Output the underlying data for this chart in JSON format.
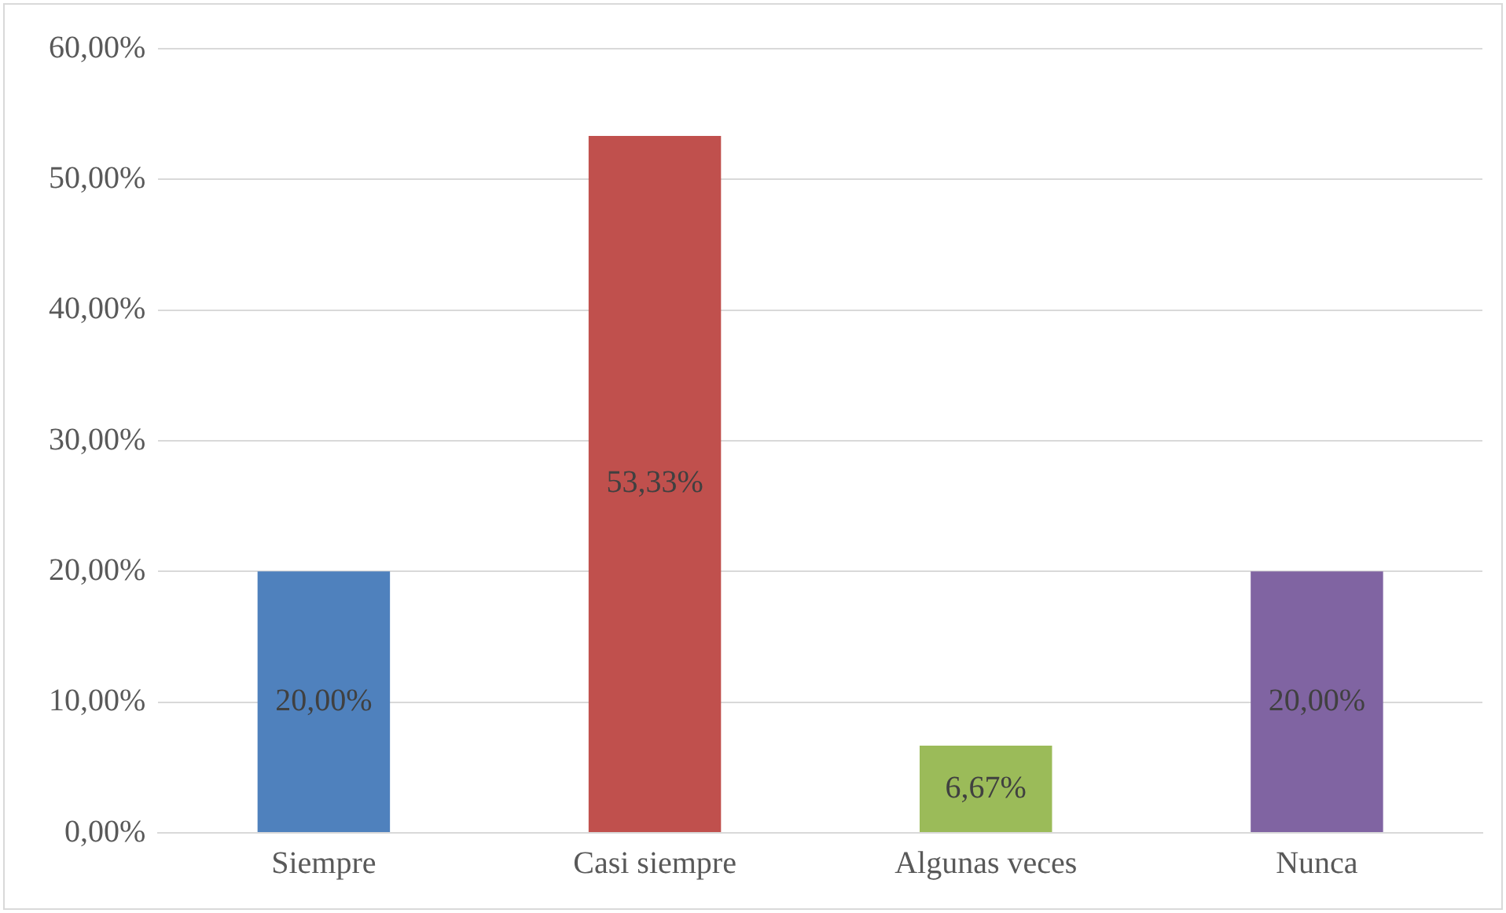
{
  "chart_data": {
    "type": "bar",
    "categories": [
      "Siempre",
      "Casi siempre",
      "Algunas veces",
      "Nunca"
    ],
    "values": [
      20,
      53.33,
      6.67,
      20
    ],
    "colors": [
      "#4f81bd",
      "#c0504d",
      "#9bbb59",
      "#8064a2"
    ],
    "value_labels": [
      "20,00%",
      "53,33%",
      "6,67%",
      "20,00%"
    ],
    "ylim": [
      0,
      60
    ],
    "yticks": [
      {
        "value": 0,
        "label": "0,00%"
      },
      {
        "value": 10,
        "label": "10,00%"
      },
      {
        "value": 20,
        "label": "20,00%"
      },
      {
        "value": 30,
        "label": "30,00%"
      },
      {
        "value": 40,
        "label": "40,00%"
      },
      {
        "value": 50,
        "label": "50,00%"
      },
      {
        "value": 60,
        "label": "60,00%"
      }
    ],
    "grid": "y",
    "legend": false
  }
}
